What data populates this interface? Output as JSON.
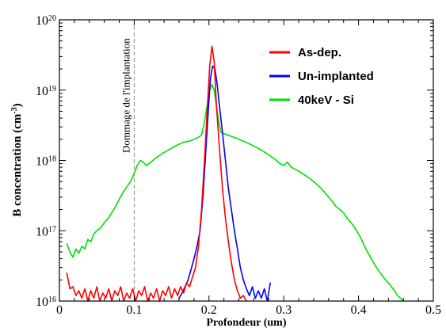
{
  "chart_data": {
    "type": "line",
    "xlabel": "Profondeur (um)",
    "ylabel_main": "B concentration (cm",
    "ylabel_sup": "-3",
    "ylabel_close": ")",
    "x_scale": "linear",
    "y_scale": "log",
    "xlim": [
      0,
      0.5
    ],
    "ylim": [
      1e+16,
      1e+20
    ],
    "x_ticks": [
      {
        "value": 0,
        "label": "0"
      },
      {
        "value": 0.1,
        "label": "0.1"
      },
      {
        "value": 0.2,
        "label": "0.2"
      },
      {
        "value": 0.3,
        "label": "0.3"
      },
      {
        "value": 0.4,
        "label": "0.4"
      },
      {
        "value": 0.5,
        "label": "0.5"
      }
    ],
    "y_ticks": [
      {
        "exp": 16,
        "base": "10",
        "sup": "16"
      },
      {
        "exp": 17,
        "base": "10",
        "sup": "17"
      },
      {
        "exp": 18,
        "base": "10",
        "sup": "18"
      },
      {
        "exp": 19,
        "base": "10",
        "sup": "19"
      },
      {
        "exp": 20,
        "base": "10",
        "sup": "20"
      }
    ],
    "annotation": {
      "text": "Dommage de l'implantation",
      "x": 0.1
    },
    "legend_position": "top-right",
    "series": [
      {
        "name": "As-dep.",
        "color": "#ff0000",
        "points": [
          [
            0.01,
            2.5e+16
          ],
          [
            0.014,
            1.5e+16
          ],
          [
            0.018,
            1.6e+16
          ],
          [
            0.022,
            1.2e+16
          ],
          [
            0.026,
            1.4e+16
          ],
          [
            0.03,
            1.1e+16
          ],
          [
            0.034,
            1.5e+16
          ],
          [
            0.038,
            1e+16
          ],
          [
            0.042,
            1.4e+16
          ],
          [
            0.046,
            1.1e+16
          ],
          [
            0.05,
            1.6e+16
          ],
          [
            0.054,
            1e+16
          ],
          [
            0.058,
            1.3e+16
          ],
          [
            0.062,
            1.1e+16
          ],
          [
            0.066,
            1.5e+16
          ],
          [
            0.07,
            1e+16
          ],
          [
            0.074,
            1.4e+16
          ],
          [
            0.078,
            1.2e+16
          ],
          [
            0.082,
            1.6e+16
          ],
          [
            0.086,
            1e+16
          ],
          [
            0.09,
            1.3e+16
          ],
          [
            0.094,
            1.1e+16
          ],
          [
            0.098,
            1.5e+16
          ],
          [
            0.102,
            1e+16
          ],
          [
            0.106,
            1.4e+16
          ],
          [
            0.11,
            1.2e+16
          ],
          [
            0.114,
            1.6e+16
          ],
          [
            0.118,
            1e+16
          ],
          [
            0.122,
            1.3e+16
          ],
          [
            0.126,
            1.1e+16
          ],
          [
            0.13,
            1.5e+16
          ],
          [
            0.134,
            1e+16
          ],
          [
            0.138,
            1.4e+16
          ],
          [
            0.142,
            1.2e+16
          ],
          [
            0.146,
            1.6e+16
          ],
          [
            0.15,
            1.1e+16
          ],
          [
            0.154,
            1.5e+16
          ],
          [
            0.158,
            1.2e+16
          ],
          [
            0.162,
            1.6e+16
          ],
          [
            0.166,
            1.3e+16
          ],
          [
            0.17,
            1.8e+16
          ],
          [
            0.174,
            1.6e+16
          ],
          [
            0.178,
            2.2e+16
          ],
          [
            0.182,
            3e+16
          ],
          [
            0.186,
            6e+16
          ],
          [
            0.19,
            2e+17
          ],
          [
            0.194,
            1e+18
          ],
          [
            0.198,
            6e+18
          ],
          [
            0.201,
            2.2e+19
          ],
          [
            0.204,
            4.2e+19
          ],
          [
            0.207,
            2.5e+19
          ],
          [
            0.21,
            6e+18
          ],
          [
            0.214,
            1.5e+18
          ],
          [
            0.218,
            4e+17
          ],
          [
            0.222,
            1.5e+17
          ],
          [
            0.226,
            7e+16
          ],
          [
            0.23,
            3.5e+16
          ],
          [
            0.234,
            2e+16
          ],
          [
            0.238,
            1.4e+16
          ],
          [
            0.242,
            1.1e+16
          ],
          [
            0.246,
            1.2e+16
          ],
          [
            0.25,
            1e+16
          ]
        ]
      },
      {
        "name": "Un-implanted",
        "color": "#0000ff",
        "points": [
          [
            0.16,
            1.1e+16
          ],
          [
            0.164,
            1.3e+16
          ],
          [
            0.168,
            1.6e+16
          ],
          [
            0.172,
            2e+16
          ],
          [
            0.176,
            2.8e+16
          ],
          [
            0.18,
            4e+16
          ],
          [
            0.184,
            6e+16
          ],
          [
            0.188,
            1e+17
          ],
          [
            0.192,
            3e+17
          ],
          [
            0.196,
            1.5e+18
          ],
          [
            0.199,
            5e+18
          ],
          [
            0.202,
            1.5e+19
          ],
          [
            0.205,
            2.2e+19
          ],
          [
            0.208,
            2e+19
          ],
          [
            0.211,
            1.2e+19
          ],
          [
            0.214,
            6e+18
          ],
          [
            0.218,
            2.5e+18
          ],
          [
            0.222,
            1e+18
          ],
          [
            0.226,
            4e+17
          ],
          [
            0.23,
            2e+17
          ],
          [
            0.234,
            1e+17
          ],
          [
            0.238,
            5.5e+16
          ],
          [
            0.242,
            3e+16
          ],
          [
            0.246,
            2e+16
          ],
          [
            0.25,
            1.5e+16
          ],
          [
            0.254,
            1.2e+16
          ],
          [
            0.258,
            1.6e+16
          ],
          [
            0.262,
            1.1e+16
          ],
          [
            0.266,
            1.4e+16
          ],
          [
            0.27,
            1.1e+16
          ],
          [
            0.274,
            1.5e+16
          ],
          [
            0.278,
            1e+16
          ],
          [
            0.282,
            1.8e+16
          ]
        ]
      },
      {
        "name": "40keV - Si",
        "color": "#00e000",
        "points": [
          [
            0.01,
            6.5e+16
          ],
          [
            0.014,
            5e+16
          ],
          [
            0.018,
            4.2e+16
          ],
          [
            0.022,
            5.5e+16
          ],
          [
            0.026,
            4.8e+16
          ],
          [
            0.03,
            6e+16
          ],
          [
            0.034,
            5.5e+16
          ],
          [
            0.038,
            7.5e+16
          ],
          [
            0.042,
            7e+16
          ],
          [
            0.046,
            9e+16
          ],
          [
            0.05,
            1e+17
          ],
          [
            0.055,
            1.1e+17
          ],
          [
            0.06,
            1.3e+17
          ],
          [
            0.065,
            1.5e+17
          ],
          [
            0.07,
            1.8e+17
          ],
          [
            0.075,
            2.2e+17
          ],
          [
            0.08,
            2.8e+17
          ],
          [
            0.085,
            3.5e+17
          ],
          [
            0.09,
            4.2e+17
          ],
          [
            0.095,
            5e+17
          ],
          [
            0.1,
            6.5e+17
          ],
          [
            0.104,
            8.5e+17
          ],
          [
            0.108,
            1e+18
          ],
          [
            0.112,
            9.5e+17
          ],
          [
            0.116,
            8.5e+17
          ],
          [
            0.12,
            9e+17
          ],
          [
            0.125,
            1e+18
          ],
          [
            0.13,
            1.1e+18
          ],
          [
            0.135,
            1.2e+18
          ],
          [
            0.14,
            1.3e+18
          ],
          [
            0.145,
            1.4e+18
          ],
          [
            0.15,
            1.5e+18
          ],
          [
            0.155,
            1.6e+18
          ],
          [
            0.16,
            1.7e+18
          ],
          [
            0.165,
            1.8e+18
          ],
          [
            0.17,
            1.85e+18
          ],
          [
            0.175,
            1.9e+18
          ],
          [
            0.18,
            2e+18
          ],
          [
            0.185,
            2.1e+18
          ],
          [
            0.19,
            2.3e+18
          ],
          [
            0.194,
            3.5e+18
          ],
          [
            0.198,
            6.5e+18
          ],
          [
            0.201,
            1e+19
          ],
          [
            0.204,
            1.2e+19
          ],
          [
            0.207,
            1e+19
          ],
          [
            0.21,
            6e+18
          ],
          [
            0.213,
            3.5e+18
          ],
          [
            0.216,
            2.5e+18
          ],
          [
            0.22,
            2.4e+18
          ],
          [
            0.225,
            2.3e+18
          ],
          [
            0.23,
            2.2e+18
          ],
          [
            0.235,
            2.1e+18
          ],
          [
            0.24,
            2e+18
          ],
          [
            0.245,
            1.9e+18
          ],
          [
            0.25,
            1.8e+18
          ],
          [
            0.255,
            1.7e+18
          ],
          [
            0.26,
            1.6e+18
          ],
          [
            0.265,
            1.5e+18
          ],
          [
            0.27,
            1.4e+18
          ],
          [
            0.275,
            1.3e+18
          ],
          [
            0.28,
            1.2e+18
          ],
          [
            0.285,
            1.1e+18
          ],
          [
            0.29,
            1e+18
          ],
          [
            0.295,
            9e+17
          ],
          [
            0.3,
            8.5e+17
          ],
          [
            0.305,
            9.5e+17
          ],
          [
            0.31,
            8e+17
          ],
          [
            0.315,
            7.5e+17
          ],
          [
            0.32,
            7e+17
          ],
          [
            0.325,
            6.5e+17
          ],
          [
            0.33,
            6e+17
          ],
          [
            0.335,
            5.5e+17
          ],
          [
            0.34,
            5e+17
          ],
          [
            0.345,
            4.5e+17
          ],
          [
            0.35,
            4e+17
          ],
          [
            0.355,
            3.5e+17
          ],
          [
            0.36,
            3e+17
          ],
          [
            0.365,
            2.6e+17
          ],
          [
            0.37,
            2.2e+17
          ],
          [
            0.375,
            2e+17
          ],
          [
            0.38,
            1.8e+17
          ],
          [
            0.385,
            1.5e+17
          ],
          [
            0.39,
            1.3e+17
          ],
          [
            0.395,
            1.1e+17
          ],
          [
            0.4,
            9e+16
          ],
          [
            0.404,
            7.5e+16
          ],
          [
            0.408,
            6e+16
          ],
          [
            0.412,
            5e+16
          ],
          [
            0.416,
            4.2e+16
          ],
          [
            0.42,
            3.5e+16
          ],
          [
            0.424,
            3e+16
          ],
          [
            0.428,
            2.6e+16
          ],
          [
            0.432,
            2.3e+16
          ],
          [
            0.436,
            2e+16
          ],
          [
            0.44,
            1.8e+16
          ],
          [
            0.444,
            1.6e+16
          ],
          [
            0.448,
            1.4e+16
          ],
          [
            0.452,
            1.2e+16
          ],
          [
            0.456,
            1.1e+16
          ],
          [
            0.46,
            1e+16
          ]
        ]
      }
    ]
  }
}
